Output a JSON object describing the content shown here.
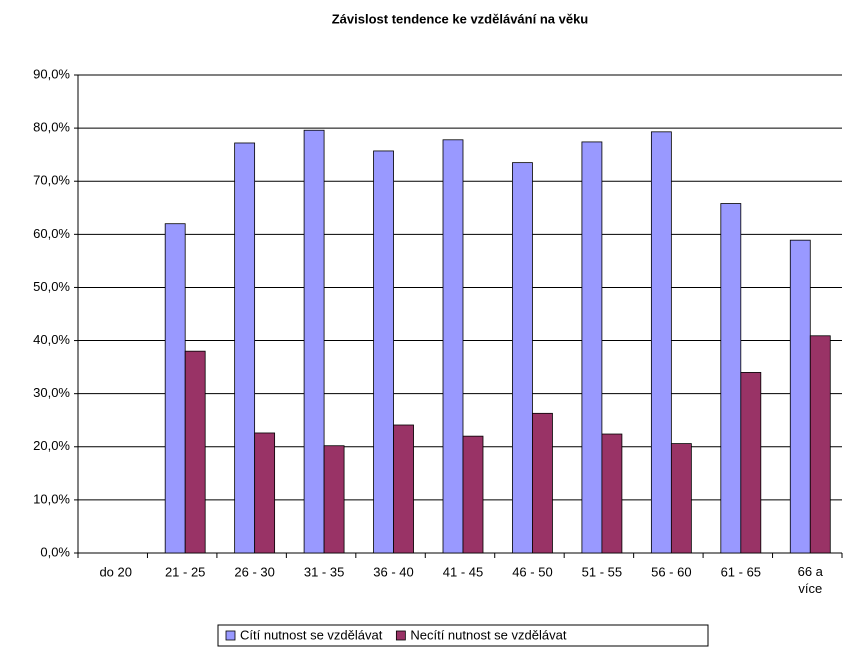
{
  "chart_data": {
    "type": "bar",
    "title": "Závislost tendence ke vzdělávání na věku",
    "categories": [
      "do 20",
      "21 - 25",
      "26 - 30",
      "31 - 35",
      "36 - 40",
      "41 - 45",
      "46 - 50",
      "51 - 55",
      "56 - 60",
      "61 - 65",
      "66 a více"
    ],
    "series": [
      {
        "name": "Cítí nutnost se vzdělávat",
        "color": "#9999ff",
        "values": [
          0,
          62.0,
          77.2,
          79.6,
          75.7,
          77.8,
          73.5,
          77.4,
          79.3,
          65.8,
          58.9
        ]
      },
      {
        "name": "Necítí nutnost se vzdělávat",
        "color": "#993366",
        "values": [
          0,
          38.0,
          22.6,
          20.2,
          24.1,
          22.0,
          26.3,
          22.4,
          20.6,
          34.0,
          40.9
        ]
      }
    ],
    "ylim": [
      0,
      90
    ],
    "yticks": [
      {
        "value": 0,
        "label": "0,0%"
      },
      {
        "value": 10,
        "label": "10,0%"
      },
      {
        "value": 20,
        "label": "20,0%"
      },
      {
        "value": 30,
        "label": "30,0%"
      },
      {
        "value": 40,
        "label": "40,0%"
      },
      {
        "value": 50,
        "label": "50,0%"
      },
      {
        "value": 60,
        "label": "60,0%"
      },
      {
        "value": 70,
        "label": "70,0%"
      },
      {
        "value": 80,
        "label": "80,0%"
      },
      {
        "value": 90,
        "label": "90,0%"
      }
    ],
    "grid": true,
    "legend": "bottom"
  }
}
